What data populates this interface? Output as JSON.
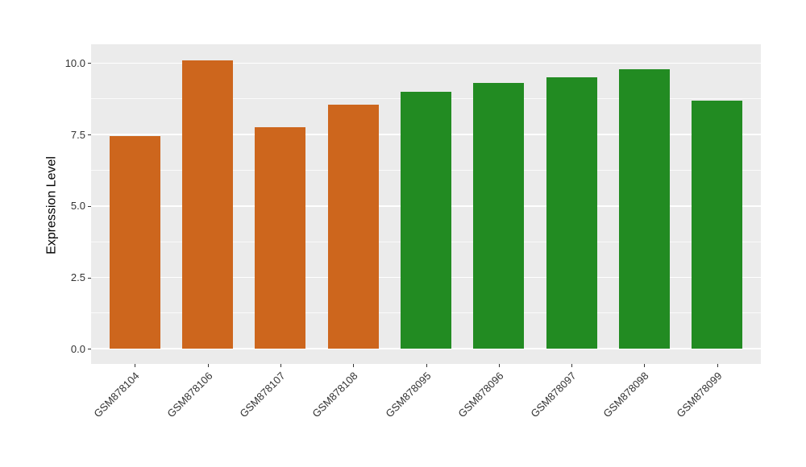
{
  "chart_data": {
    "type": "bar",
    "categories": [
      "GSM878104",
      "GSM878106",
      "GSM878107",
      "GSM878108",
      "GSM878095",
      "GSM878096",
      "GSM878097",
      "GSM878098",
      "GSM878099"
    ],
    "values": [
      7.45,
      10.1,
      7.75,
      8.55,
      9.0,
      9.3,
      9.5,
      9.8,
      8.7
    ],
    "bar_colors": [
      "#CD661D",
      "#CD661D",
      "#CD661D",
      "#CD661D",
      "#228B22",
      "#228B22",
      "#228B22",
      "#228B22",
      "#228B22"
    ],
    "title": "",
    "xlabel": "",
    "ylabel": "Expression Level",
    "yticks": [
      0.0,
      2.5,
      5.0,
      7.5,
      10.0
    ],
    "ytick_labels": [
      "0.0",
      "2.5",
      "5.0",
      "7.5",
      "10.0"
    ],
    "yticks_minor": [
      1.25,
      3.75,
      6.25,
      8.75
    ],
    "ylim": [
      0,
      10.1
    ],
    "grid": true,
    "legend": "none",
    "bar_width_fraction": 0.7,
    "x_label_rotation_deg": 45,
    "colors": {
      "panel_background": "#EBEBEB",
      "gridline": "#FFFFFF",
      "axis_text": "#333333",
      "axis_title": "#000000",
      "page_background": "#FFFFFF",
      "group1_orange": "#CD661D",
      "group2_green": "#228B22"
    }
  }
}
